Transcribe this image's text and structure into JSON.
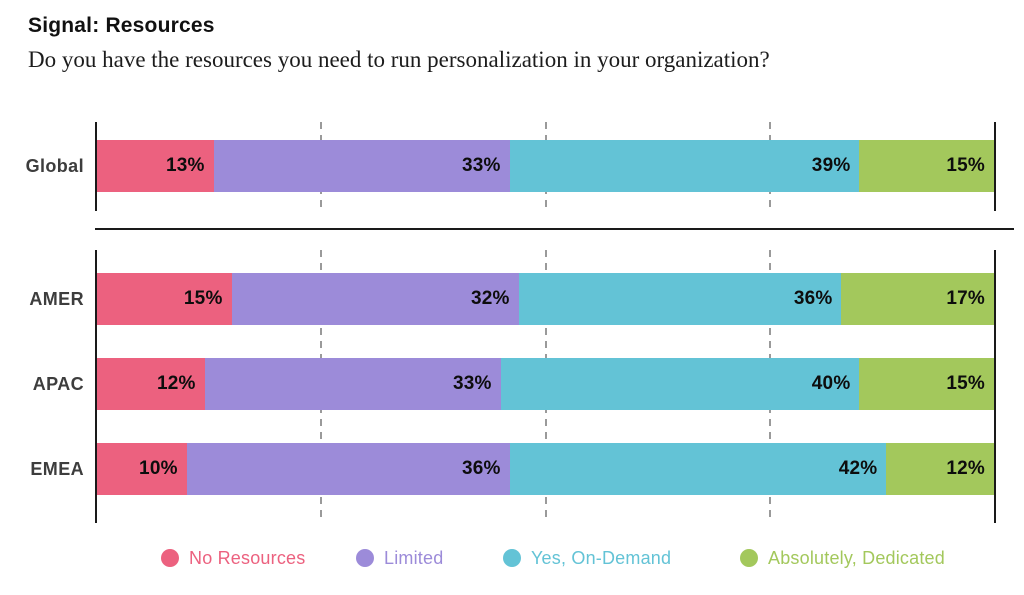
{
  "title": "Signal: Resources",
  "subtitle": "Do you have the resources you need to run personalization in your organization?",
  "colors": {
    "no_resources": "#EC617F",
    "limited": "#9C8BD9",
    "yes_on_demand": "#63C3D6",
    "absolutely_dedicated": "#A3C85C",
    "axis": "#1A1A1A",
    "gridline": "#9A9A9A",
    "value_label": "#0D0D0D",
    "row_label": "#3D3D3D"
  },
  "legend": [
    {
      "label": "No Resources",
      "color": "#EC617F"
    },
    {
      "label": "Limited",
      "color": "#9C8BD9"
    },
    {
      "label": "Yes, On-Demand",
      "color": "#63C3D6"
    },
    {
      "label": "Absolutely, Dedicated",
      "color": "#A3C85C"
    }
  ],
  "chart_data": {
    "type": "bar",
    "subtype": "horizontal-stacked",
    "title": "Signal: Resources",
    "question": "Do you have the resources you need to run personalization in your organization?",
    "unit": "%",
    "xlim": [
      0,
      100
    ],
    "grid": "dashed-vertical",
    "gridlines_percent": [
      25,
      50,
      75
    ],
    "legend_position": "bottom",
    "series_names": [
      "No Resources",
      "Limited",
      "Yes, On-Demand",
      "Absolutely, Dedicated"
    ],
    "groups": [
      {
        "name": "global",
        "rows": [
          {
            "category": "Global",
            "values": [
              13,
              33,
              39,
              15
            ]
          }
        ]
      },
      {
        "name": "regions",
        "rows": [
          {
            "category": "AMER",
            "values": [
              15,
              32,
              36,
              17
            ]
          },
          {
            "category": "APAC",
            "values": [
              12,
              33,
              40,
              15
            ]
          },
          {
            "category": "EMEA",
            "values": [
              10,
              36,
              42,
              12
            ]
          }
        ]
      }
    ]
  }
}
